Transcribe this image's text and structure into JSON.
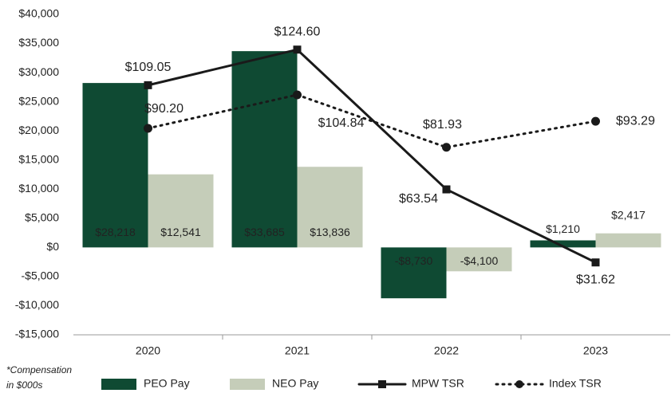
{
  "chart_data": {
    "type": "bar-line",
    "categories": [
      "2020",
      "2021",
      "2022",
      "2023"
    ],
    "series": [
      {
        "name": "PEO Pay",
        "type": "bar",
        "color": "#0f4a33",
        "values": [
          28218,
          33685,
          -8730,
          1210
        ],
        "value_labels": [
          "$28,218",
          "$33,685",
          "-$8,730",
          "$1,210"
        ]
      },
      {
        "name": "NEO Pay",
        "type": "bar",
        "color": "#c5cdb9",
        "values": [
          12541,
          13836,
          -4100,
          2417
        ],
        "value_labels": [
          "$12,541",
          "$13,836",
          "-$4,100",
          "$2,417"
        ]
      },
      {
        "name": "MPW TSR",
        "type": "line",
        "axis": "y2",
        "color": "#1a1a1a",
        "marker": "square",
        "dash": "solid",
        "values": [
          109.05,
          124.6,
          63.54,
          31.62
        ],
        "value_labels": [
          "$109.05",
          "$124.60",
          "$63.54",
          "$31.62"
        ]
      },
      {
        "name": "Index TSR",
        "type": "line",
        "axis": "y2",
        "color": "#1a1a1a",
        "marker": "circle",
        "dash": "dotted",
        "values": [
          90.2,
          104.84,
          81.93,
          93.29
        ],
        "value_labels": [
          "$90.20",
          "$104.84",
          "$81.93",
          "$93.29"
        ]
      }
    ],
    "ylim": [
      -15000,
      40000
    ],
    "yticks": [
      {
        "value": -15000,
        "label": "-$15,000"
      },
      {
        "value": -10000,
        "label": "-$10,000"
      },
      {
        "value": -5000,
        "label": "-$5,000"
      },
      {
        "value": 0,
        "label": "$0"
      },
      {
        "value": 5000,
        "label": "$5,000"
      },
      {
        "value": 10000,
        "label": "$10,000"
      },
      {
        "value": 15000,
        "label": "$15,000"
      },
      {
        "value": 20000,
        "label": "$20,000"
      },
      {
        "value": 25000,
        "label": "$25,000"
      },
      {
        "value": 30000,
        "label": "$30,000"
      },
      {
        "value": 35000,
        "label": "$35,000"
      },
      {
        "value": 40000,
        "label": "$40,000"
      }
    ],
    "y2lim": [
      0,
      140
    ],
    "note": [
      "*Compensation",
      "in $000s"
    ],
    "legend": "bottom"
  }
}
